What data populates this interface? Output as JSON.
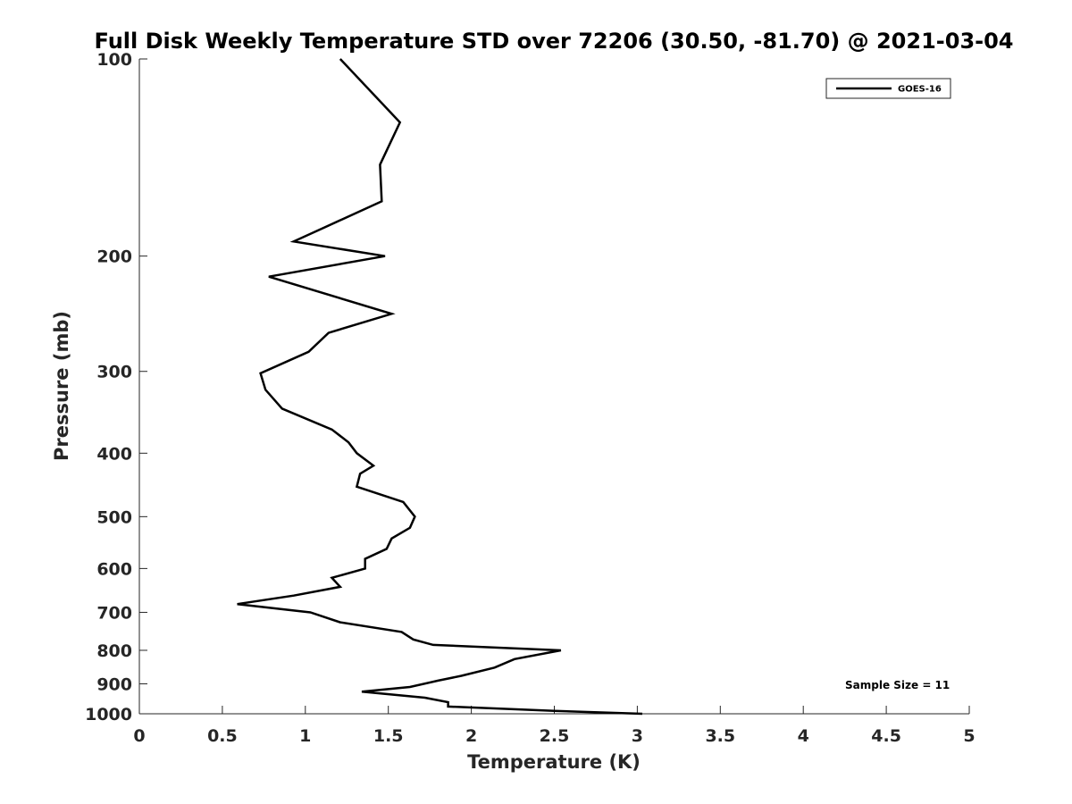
{
  "chart_data": {
    "type": "line",
    "title": "Full Disk Weekly Temperature STD over 72206 (30.50, -81.70) @ 2021-03-04",
    "xlabel": "Temperature (K)",
    "ylabel": "Pressure (mb)",
    "xlim": [
      0,
      5
    ],
    "ylim": [
      100,
      1000
    ],
    "yscale": "log",
    "y_reversed": true,
    "grid": false,
    "legend_position": "top-right",
    "xticks": [
      0,
      0.5,
      1,
      1.5,
      2,
      2.5,
      3,
      3.5,
      4,
      4.5,
      5
    ],
    "xtick_labels": [
      "0",
      "0.5",
      "1",
      "1.5",
      "2",
      "2.5",
      "3",
      "3.5",
      "4",
      "4.5",
      "5"
    ],
    "yticks": [
      100,
      200,
      300,
      400,
      500,
      600,
      700,
      800,
      900,
      1000
    ],
    "ytick_labels": [
      "100",
      "200",
      "300",
      "400",
      "500",
      "600",
      "700",
      "800",
      "900",
      "1000"
    ],
    "series": [
      {
        "name": "GOES-16",
        "color": "#000000",
        "points": [
          [
            1.21,
            100
          ],
          [
            1.57,
            125
          ],
          [
            1.45,
            145
          ],
          [
            1.46,
            165
          ],
          [
            0.93,
            190
          ],
          [
            1.48,
            200
          ],
          [
            0.78,
            215
          ],
          [
            1.52,
            245
          ],
          [
            1.14,
            262
          ],
          [
            1.02,
            280
          ],
          [
            0.73,
            302
          ],
          [
            0.76,
            320
          ],
          [
            0.86,
            342
          ],
          [
            1.16,
            368
          ],
          [
            1.26,
            385
          ],
          [
            1.31,
            400
          ],
          [
            1.41,
            418
          ],
          [
            1.33,
            430
          ],
          [
            1.31,
            450
          ],
          [
            1.59,
            475
          ],
          [
            1.66,
            500
          ],
          [
            1.63,
            520
          ],
          [
            1.52,
            540
          ],
          [
            1.49,
            560
          ],
          [
            1.36,
            580
          ],
          [
            1.36,
            600
          ],
          [
            1.16,
            620
          ],
          [
            1.21,
            640
          ],
          [
            0.93,
            660
          ],
          [
            0.59,
            680
          ],
          [
            1.03,
            700
          ],
          [
            1.21,
            725
          ],
          [
            1.58,
            750
          ],
          [
            1.65,
            770
          ],
          [
            1.77,
            785
          ],
          [
            2.54,
            800
          ],
          [
            2.26,
            825
          ],
          [
            2.14,
            850
          ],
          [
            1.94,
            875
          ],
          [
            1.8,
            890
          ],
          [
            1.63,
            910
          ],
          [
            1.34,
            925
          ],
          [
            1.72,
            945
          ],
          [
            1.86,
            960
          ],
          [
            1.86,
            975
          ],
          [
            2.5,
            990
          ],
          [
            3.03,
            1000
          ]
        ]
      }
    ],
    "annotations": [
      "Sample Size = 11"
    ]
  }
}
